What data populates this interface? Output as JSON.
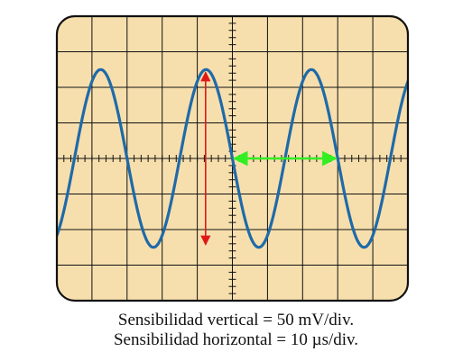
{
  "screen": {
    "background_color": "#f7dfad",
    "grid_color": "#111111",
    "frame_color": "#111111",
    "divisions_x": 10,
    "divisions_y": 8,
    "minor_ticks_per_division": 5
  },
  "waveform": {
    "color": "#1f6aa8",
    "amplitude_divisions": 2.5,
    "period_divisions": 3.0,
    "phase_note": "crosses center line going down at center of screen"
  },
  "markers": {
    "peak_to_peak_arrow": {
      "color": "#e01818",
      "span_divisions": 5.0
    },
    "period_arrow": {
      "color": "#33ee22",
      "span_divisions": 3.0
    }
  },
  "caption": {
    "vertical": "Sensibilidad vertical = 50 mV/div.",
    "horizontal": "Sensibilidad horizontal = 10 µs/div."
  }
}
